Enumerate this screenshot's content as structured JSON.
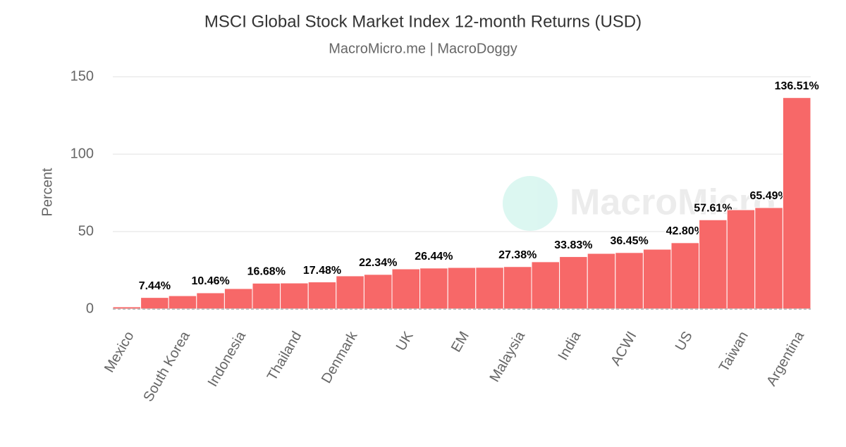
{
  "chart_data": {
    "type": "bar",
    "title": "MSCI Global Stock Market Index 12-month Returns (USD)",
    "subtitle": "MacroMicro.me | MacroDoggy",
    "watermark": "MacroMicro",
    "y_label": "Percent",
    "categories": [
      "Mexico",
      null,
      "South Korea",
      null,
      "Indonesia",
      null,
      "Thailand",
      null,
      "Denmark",
      null,
      "UK",
      null,
      "EM",
      null,
      "Malaysia",
      null,
      "India",
      null,
      "ACWI",
      null,
      "US",
      null,
      "Taiwan",
      null,
      "Argentina"
    ],
    "values": [
      1.4,
      7.44,
      8.6,
      10.46,
      13.2,
      16.68,
      16.8,
      17.48,
      21.4,
      22.34,
      25.9,
      26.44,
      26.8,
      26.9,
      27.38,
      30.5,
      33.83,
      35.9,
      36.45,
      38.6,
      42.8,
      57.61,
      64.1,
      65.49,
      136.51
    ],
    "value_labels": [
      null,
      "7.44%",
      null,
      "10.46%",
      null,
      "16.68%",
      null,
      "17.48%",
      null,
      "22.34%",
      null,
      "26.44%",
      null,
      null,
      "27.38%",
      null,
      "33.83%",
      null,
      "36.45%",
      null,
      "42.80%",
      "57.61%",
      null,
      "65.49%",
      "136.51%"
    ],
    "color": "#f76868",
    "ylim": [
      0,
      150
    ],
    "yticks": [
      0,
      50,
      100,
      150
    ],
    "grid": true
  }
}
